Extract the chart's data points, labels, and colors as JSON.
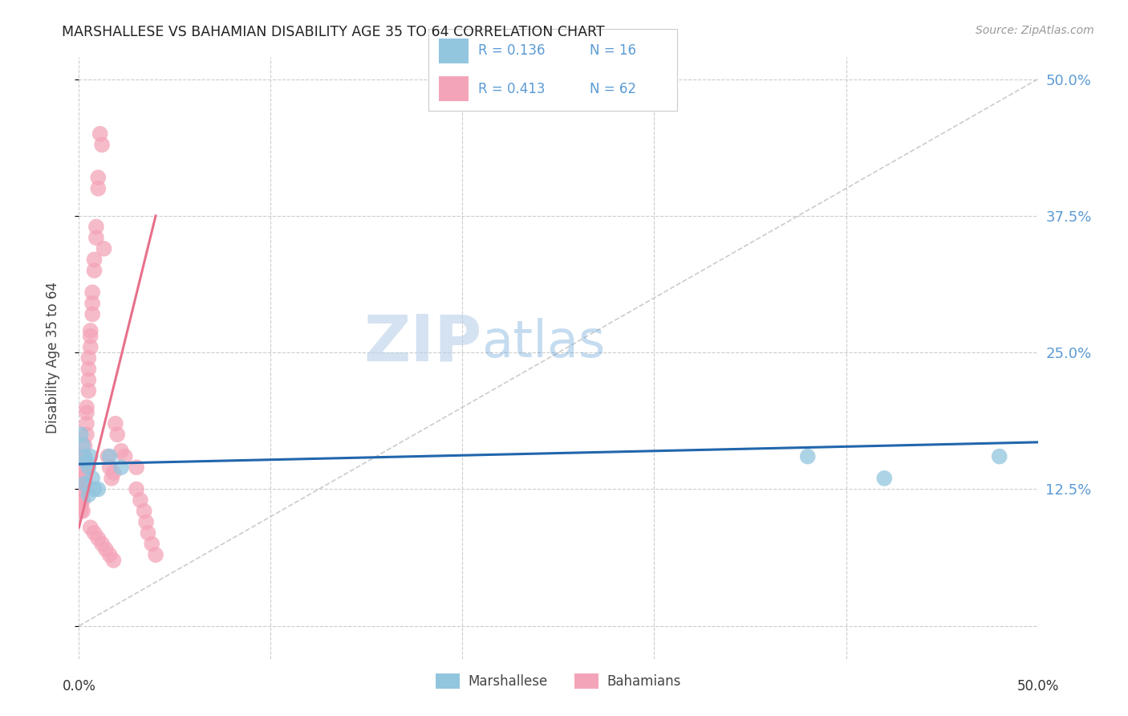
{
  "title": "MARSHALLESE VS BAHAMIAN DISABILITY AGE 35 TO 64 CORRELATION CHART",
  "source": "Source: ZipAtlas.com",
  "ylabel": "Disability Age 35 to 64",
  "xmin": 0.0,
  "xmax": 0.5,
  "ymin": -0.03,
  "ymax": 0.52,
  "yticks": [
    0.0,
    0.125,
    0.25,
    0.375,
    0.5
  ],
  "ytick_labels": [
    "",
    "12.5%",
    "25.0%",
    "37.5%",
    "50.0%"
  ],
  "xticks": [
    0.0,
    0.1,
    0.2,
    0.3,
    0.4,
    0.5
  ],
  "grid_color": "#cccccc",
  "background_color": "#ffffff",
  "watermark_zip": "ZIP",
  "watermark_atlas": "atlas",
  "legend_R1": "0.136",
  "legend_N1": "16",
  "legend_R2": "0.413",
  "legend_N2": "62",
  "marshallese_color": "#92c5de",
  "bahamian_color": "#f4a4b8",
  "marshallese_line_color": "#2166ac",
  "bahamian_line_color": "#e8708a",
  "diagonal_color": "#cccccc",
  "marshallese_x": [
    0.001,
    0.002,
    0.003,
    0.004,
    0.005,
    0.006,
    0.007,
    0.008,
    0.01,
    0.016,
    0.022,
    0.38,
    0.42,
    0.48,
    0.003,
    0.005
  ],
  "marshallese_y": [
    0.175,
    0.165,
    0.155,
    0.15,
    0.145,
    0.155,
    0.135,
    0.125,
    0.125,
    0.155,
    0.145,
    0.155,
    0.135,
    0.155,
    0.13,
    0.12
  ],
  "bahamian_x": [
    0.001,
    0.001,
    0.001,
    0.001,
    0.001,
    0.002,
    0.002,
    0.002,
    0.002,
    0.002,
    0.002,
    0.003,
    0.003,
    0.003,
    0.003,
    0.003,
    0.004,
    0.004,
    0.004,
    0.004,
    0.005,
    0.005,
    0.005,
    0.005,
    0.006,
    0.006,
    0.006,
    0.007,
    0.007,
    0.007,
    0.008,
    0.008,
    0.009,
    0.009,
    0.01,
    0.01,
    0.011,
    0.012,
    0.013,
    0.015,
    0.016,
    0.017,
    0.018,
    0.019,
    0.02,
    0.022,
    0.024,
    0.03,
    0.03,
    0.032,
    0.034,
    0.035,
    0.036,
    0.038,
    0.04,
    0.006,
    0.008,
    0.01,
    0.012,
    0.014,
    0.016,
    0.018
  ],
  "bahamian_y": [
    0.13,
    0.12,
    0.115,
    0.11,
    0.105,
    0.155,
    0.145,
    0.135,
    0.125,
    0.115,
    0.105,
    0.165,
    0.155,
    0.145,
    0.135,
    0.125,
    0.2,
    0.195,
    0.185,
    0.175,
    0.245,
    0.235,
    0.225,
    0.215,
    0.27,
    0.265,
    0.255,
    0.305,
    0.295,
    0.285,
    0.335,
    0.325,
    0.365,
    0.355,
    0.41,
    0.4,
    0.45,
    0.44,
    0.345,
    0.155,
    0.145,
    0.135,
    0.14,
    0.185,
    0.175,
    0.16,
    0.155,
    0.145,
    0.125,
    0.115,
    0.105,
    0.095,
    0.085,
    0.075,
    0.065,
    0.09,
    0.085,
    0.08,
    0.075,
    0.07,
    0.065,
    0.06
  ],
  "bahamian_trend_x0": 0.0,
  "bahamian_trend_y0": 0.09,
  "bahamian_trend_x1": 0.04,
  "bahamian_trend_y1": 0.375,
  "marshallese_trend_x0": 0.0,
  "marshallese_trend_y0": 0.148,
  "marshallese_trend_x1": 0.5,
  "marshallese_trend_y1": 0.168
}
